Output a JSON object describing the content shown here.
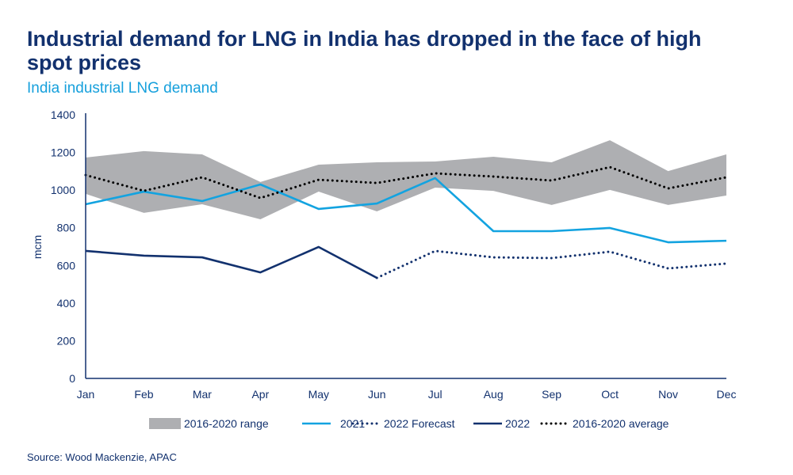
{
  "title": "Industrial demand for LNG in India has dropped in the face of high spot prices",
  "subtitle": "India industrial LNG demand",
  "source": "Source: Wood Mackenzie, APAC",
  "colors": {
    "title": "#12316e",
    "subtitle": "#16a0dc",
    "range": "#aeafb2",
    "s2021": "#13a3e0",
    "s2022": "#12316e",
    "average": "#000000"
  },
  "chart_data": {
    "type": "line",
    "ylabel": "mcm",
    "ylim": [
      0,
      1400
    ],
    "yticks": [
      "0",
      "200",
      "400",
      "600",
      "800",
      "1000",
      "1200",
      "1400"
    ],
    "categories": [
      "Jan",
      "Feb",
      "Mar",
      "Apr",
      "May",
      "Jun",
      "Jul",
      "Aug",
      "Sep",
      "Oct",
      "Nov",
      "Dec"
    ],
    "grid": false,
    "legend_position": "bottom",
    "range": {
      "name": "2016-2020 range",
      "upper": [
        1173,
        1207,
        1190,
        1043,
        1135,
        1148,
        1152,
        1177,
        1148,
        1265,
        1101,
        1190
      ],
      "lower": [
        980,
        879,
        925,
        845,
        992,
        887,
        1013,
        996,
        921,
        1001,
        921,
        971
      ]
    },
    "series": [
      {
        "name": "2021",
        "style": "solid",
        "color": "#13a3e0",
        "values": [
          925,
          992,
          942,
          1030,
          900,
          929,
          1064,
          782,
          782,
          799,
          723,
          731
        ]
      },
      {
        "name": "2022 Forecast",
        "style": "dotted",
        "color": "#12316e",
        "values": [
          null,
          null,
          null,
          null,
          null,
          534,
          677,
          643,
          639,
          673,
          584,
          610
        ]
      },
      {
        "name": "2022",
        "style": "solid",
        "color": "#12316e",
        "values": [
          677,
          652,
          643,
          563,
          698,
          534,
          null,
          null,
          null,
          null,
          null,
          null
        ]
      },
      {
        "name": "2016-2020 average",
        "style": "dotted",
        "color": "#000000",
        "values": [
          1080,
          996,
          1068,
          958,
          1055,
          1038,
          1089,
          1072,
          1051,
          1122,
          1009,
          1068
        ]
      }
    ]
  }
}
